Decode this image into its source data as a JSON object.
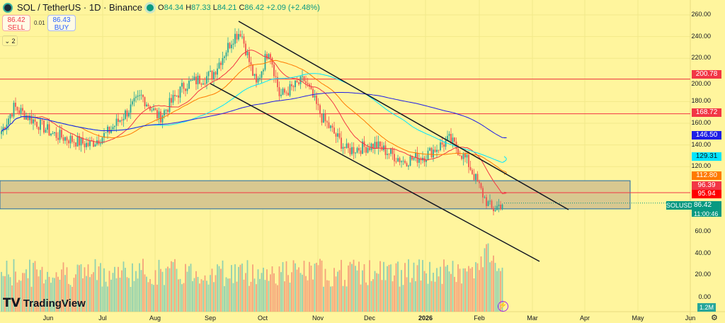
{
  "header": {
    "title": "SOL / TetherUS · 1D · Binance",
    "open_label": "O",
    "open": "84.34",
    "high_label": "H",
    "high": "87.33",
    "low_label": "L",
    "low": "84.21",
    "close_label": "C",
    "close": "86.42",
    "change": "+2.09 (+2.48%)"
  },
  "trade": {
    "sell_price": "86.42",
    "sell_label": "SELL",
    "spread": "0.01",
    "buy_price": "86.43",
    "buy_label": "BUY",
    "indicators_toggle": "⌄ 2"
  },
  "price_axis": [
    "260.00",
    "240.00",
    "220.00",
    "200.00",
    "180.00",
    "160.00",
    "140.00",
    "120.00",
    "60.00",
    "40.00",
    "20.00",
    "0.00"
  ],
  "time_axis": [
    "Jun",
    "Jul",
    "Aug",
    "Sep",
    "Oct",
    "Nov",
    "Dec",
    "2026",
    "Feb",
    "Mar",
    "Apr",
    "May",
    "Jun"
  ],
  "tags": {
    "level1": {
      "value": "200.78",
      "color": "#f23645"
    },
    "level2": {
      "value": "168.72",
      "color": "#f23645"
    },
    "ma200": {
      "value": "146.50",
      "color": "#1e1ee6"
    },
    "ma100": {
      "value": "129.31",
      "color": "#00e5ff"
    },
    "ma50": {
      "value": "112.80",
      "color": "#ff7a00"
    },
    "ma20": {
      "value": "96.39",
      "color": "#f23645"
    },
    "level3": {
      "value": "95.94",
      "color": "#ff0000"
    },
    "symbol": "SOLUSDT",
    "last": "86.42",
    "countdown": "11:00:46",
    "volume": "1.2M"
  },
  "brand": "TradingView",
  "colors": {
    "up": "#26a69a",
    "down": "#ef5350",
    "background": "#fff59d"
  },
  "chart_data": {
    "type": "candlestick",
    "symbol": "SOLUSDT",
    "interval": "1D",
    "ylim": [
      0,
      260
    ],
    "approx_closes": [
      {
        "date": "Jun",
        "close": 155
      },
      {
        "date": "mid Jun",
        "close": 150
      },
      {
        "date": "Jul",
        "close": 145
      },
      {
        "date": "Aug",
        "close": 165
      },
      {
        "date": "Sep",
        "close": 205
      },
      {
        "date": "mid Sep",
        "close": 245
      },
      {
        "date": "Oct",
        "close": 210
      },
      {
        "date": "early Oct",
        "close": 230
      },
      {
        "date": "mid Oct",
        "close": 185
      },
      {
        "date": "Nov",
        "close": 165
      },
      {
        "date": "mid Nov",
        "close": 135
      },
      {
        "date": "Dec",
        "close": 140
      },
      {
        "date": "mid Dec",
        "close": 125
      },
      {
        "date": "2026",
        "close": 130
      },
      {
        "date": "mid Jan",
        "close": 145
      },
      {
        "date": "late Jan",
        "close": 120
      },
      {
        "date": "Feb",
        "close": 85
      },
      {
        "date": "mid Feb",
        "close": 86.42
      }
    ],
    "horizontal_levels": [
      200.78,
      168.72,
      95.94
    ],
    "zone": [
      81,
      107
    ]
  }
}
